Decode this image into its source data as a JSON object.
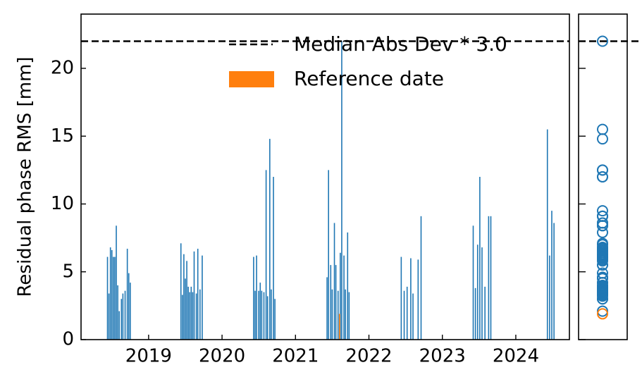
{
  "chart_data": {
    "type": "bar",
    "ylabel": "Residual phase RMS [mm]",
    "color": "#1f77b4",
    "x": [
      2018.44,
      2018.46,
      2018.48,
      2018.5,
      2018.52,
      2018.54,
      2018.56,
      2018.58,
      2018.6,
      2018.63,
      2018.65,
      2018.68,
      2018.71,
      2018.73,
      2018.75,
      2019.44,
      2019.46,
      2019.48,
      2019.5,
      2019.52,
      2019.54,
      2019.56,
      2019.58,
      2019.6,
      2019.62,
      2019.65,
      2019.67,
      2019.7,
      2019.73,
      2020.43,
      2020.45,
      2020.47,
      2020.5,
      2020.52,
      2020.54,
      2020.57,
      2020.6,
      2020.62,
      2020.65,
      2020.67,
      2020.7,
      2020.72,
      2021.43,
      2021.45,
      2021.48,
      2021.5,
      2021.53,
      2021.55,
      2021.58,
      2021.61,
      2021.63,
      2021.66,
      2021.68,
      2021.71,
      2021.73,
      2022.44,
      2022.48,
      2022.52,
      2022.57,
      2022.6,
      2022.67,
      2022.71,
      2023.42,
      2023.45,
      2023.48,
      2023.51,
      2023.54,
      2023.58,
      2023.63,
      2023.66,
      2024.43,
      2024.46,
      2024.49,
      2024.52
    ],
    "values": [
      6.1,
      3.4,
      6.8,
      6.6,
      6.1,
      6.1,
      8.4,
      4.0,
      2.1,
      3.0,
      3.4,
      3.6,
      6.7,
      4.9,
      4.2,
      7.1,
      3.3,
      6.3,
      4.5,
      5.8,
      3.9,
      3.5,
      3.9,
      3.5,
      6.5,
      3.4,
      6.7,
      3.7,
      6.2,
      6.1,
      3.6,
      6.2,
      3.6,
      4.2,
      3.6,
      3.5,
      12.5,
      3.2,
      14.8,
      3.7,
      12.0,
      3.0,
      4.6,
      12.5,
      5.5,
      3.7,
      8.6,
      5.5,
      3.6,
      6.4,
      22.0,
      6.2,
      3.7,
      7.9,
      3.5,
      6.1,
      3.6,
      3.9,
      6.0,
      3.4,
      5.9,
      9.1,
      8.4,
      3.8,
      7.0,
      12.0,
      6.8,
      3.9,
      9.1,
      9.1,
      15.5,
      6.2,
      9.5,
      8.6
    ],
    "reference": {
      "name": "Reference date",
      "x": 2021.6,
      "value": 1.9,
      "color": "#ff7f0e"
    },
    "threshold": {
      "name": "Median Abs Dev * 3.0",
      "value": 22.0,
      "color": "#000000"
    },
    "xlim": [
      2018.08,
      2024.73
    ],
    "xticks": [
      2019,
      2020,
      2021,
      2022,
      2023,
      2024
    ],
    "ylim": [
      0,
      24
    ],
    "yticks": [
      0,
      5,
      10,
      15,
      20
    ],
    "legend": "upper right"
  }
}
